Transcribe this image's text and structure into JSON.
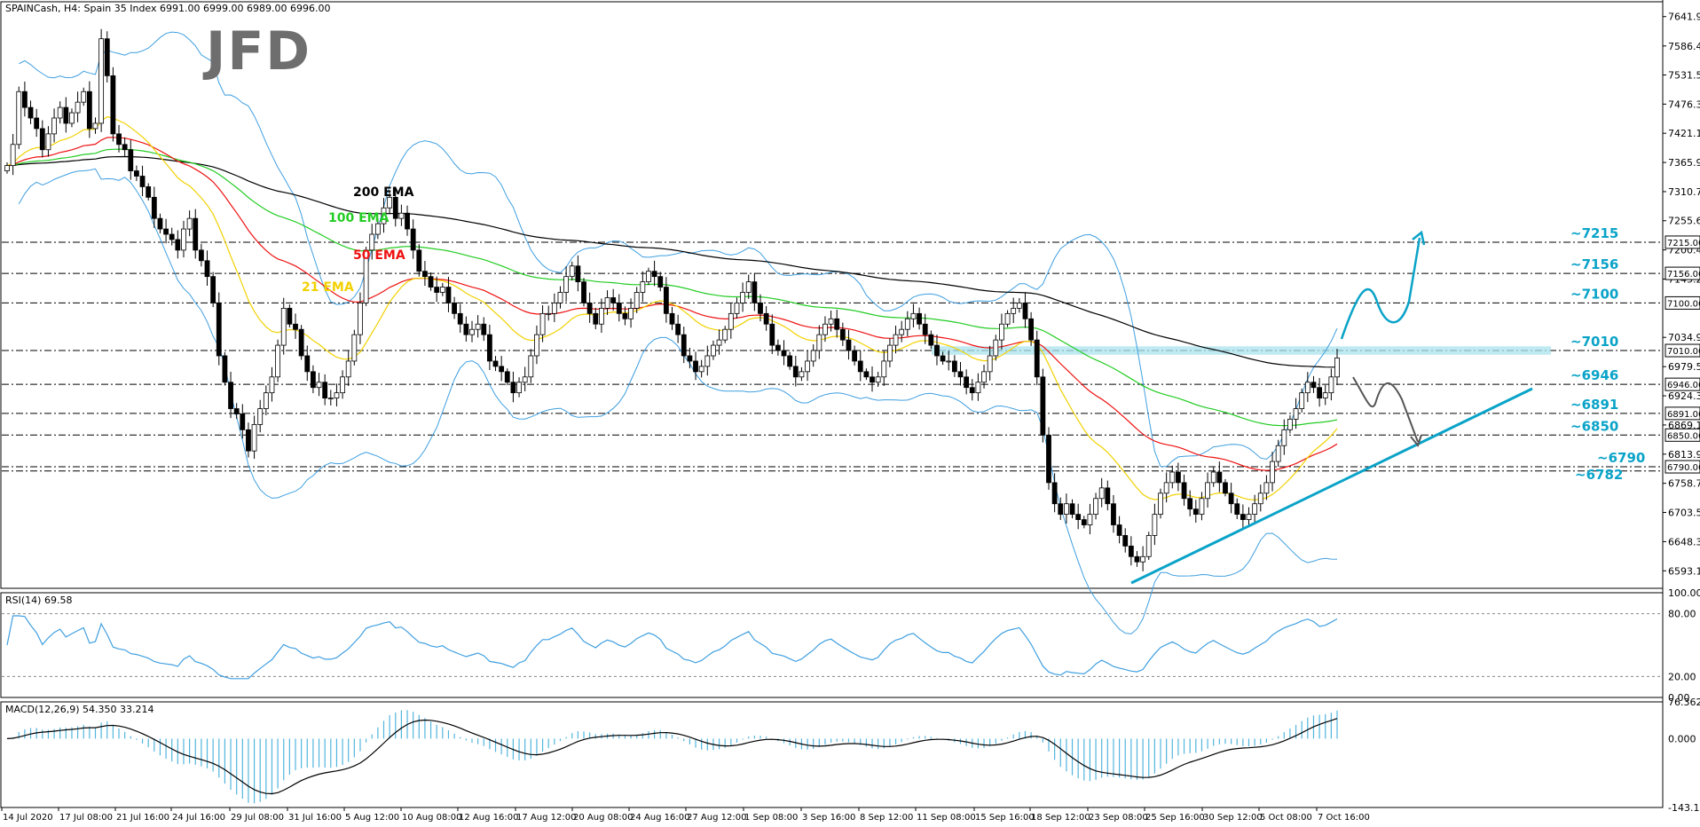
{
  "header": "SPAINCash, H4:  Spain 35 Index  6991.00 6999.00 6989.00 6996.00",
  "logo_text": "JFD",
  "colors": {
    "bull": "#ffffff",
    "bear": "#000000",
    "ema21": "#f2d100",
    "ema50": "#ee1111",
    "ema100": "#22cc22",
    "ema200": "#000000",
    "bands": "#3f9fe0",
    "accent": "#0aa3c8",
    "highlight": "#a9e3ee",
    "macd_hist": "#52b5dd"
  },
  "chart_data": [
    {
      "type": "candlestick",
      "ylim": [
        6560,
        7670
      ],
      "price_ticks": [
        "7641.90",
        "7586.40",
        "7531.50",
        "7476.30",
        "7421.15",
        "7365.90",
        "7310.70",
        "7255.65",
        "7200.40",
        "7145.20",
        "7034.90",
        "6979.50",
        "6924.30",
        "6869.10",
        "6813.90",
        "6758.70",
        "6703.55",
        "6648.30",
        "6593.10"
      ],
      "price_tags": [
        "7215.00",
        "7156.00",
        "7100.00",
        "7010.00",
        "6946.00",
        "6891.00",
        "6850.00",
        "6790.00"
      ],
      "levels": [
        {
          "value": 7215,
          "label": "~7215"
        },
        {
          "value": 7156,
          "label": "~7156"
        },
        {
          "value": 7100,
          "label": "~7100"
        },
        {
          "value": 7010,
          "label": "~7010"
        },
        {
          "value": 6946,
          "label": "~6946"
        },
        {
          "value": 6891,
          "label": "~6891"
        },
        {
          "value": 6850,
          "label": "~6850"
        },
        {
          "value": 6790,
          "label": "~6790"
        },
        {
          "value": 6782,
          "label": "~6782"
        }
      ],
      "ema_labels": [
        {
          "name": "200 EMA",
          "color": "#000000"
        },
        {
          "name": "100 EMA",
          "color": "#22cc22"
        },
        {
          "name": "50 EMA",
          "color": "#ee1111"
        },
        {
          "name": "21 EMA",
          "color": "#f2d100"
        }
      ],
      "closes": [
        7360,
        7400,
        7500,
        7470,
        7450,
        7430,
        7390,
        7420,
        7450,
        7470,
        7440,
        7460,
        7480,
        7500,
        7430,
        7440,
        7600,
        7530,
        7420,
        7400,
        7390,
        7350,
        7340,
        7320,
        7300,
        7260,
        7240,
        7230,
        7220,
        7200,
        7240,
        7260,
        7200,
        7180,
        7150,
        7100,
        7000,
        6950,
        6900,
        6890,
        6860,
        6820,
        6870,
        6900,
        6930,
        6960,
        7020,
        7090,
        7060,
        7050,
        7000,
        6970,
        6940,
        6950,
        6920,
        6920,
        6930,
        6960,
        6990,
        7040,
        7100,
        7200,
        7230,
        7250,
        7280,
        7300,
        7260,
        7270,
        7240,
        7200,
        7160,
        7150,
        7130,
        7120,
        7130,
        7100,
        7080,
        7060,
        7040,
        7050,
        7060,
        7040,
        6990,
        6980,
        6970,
        6950,
        6930,
        6950,
        6960,
        7000,
        7040,
        7080,
        7080,
        7100,
        7120,
        7150,
        7170,
        7140,
        7100,
        7080,
        7060,
        7090,
        7110,
        7100,
        7080,
        7070,
        7090,
        7120,
        7140,
        7160,
        7150,
        7130,
        7080,
        7060,
        7040,
        7000,
        6990,
        6970,
        6980,
        7000,
        7020,
        7030,
        7050,
        7080,
        7100,
        7120,
        7140,
        7100,
        7080,
        7060,
        7020,
        7010,
        7000,
        6980,
        6960,
        6970,
        6990,
        7010,
        7040,
        7060,
        7070,
        7050,
        7030,
        7010,
        6990,
        6970,
        6960,
        6950,
        6960,
        6990,
        7020,
        7040,
        7050,
        7070,
        7080,
        7060,
        7040,
        7020,
        7000,
        6990,
        6990,
        6970,
        6960,
        6940,
        6930,
        6950,
        6970,
        7000,
        7030,
        7060,
        7080,
        7090,
        7100,
        7070,
        7030,
        6960,
        6850,
        6760,
        6720,
        6700,
        6720,
        6700,
        6690,
        6680,
        6700,
        6730,
        6750,
        6720,
        6680,
        6660,
        6640,
        6620,
        6610,
        6620,
        6660,
        6700,
        6740,
        6760,
        6780,
        6760,
        6730,
        6710,
        6700,
        6730,
        6760,
        6780,
        6760,
        6740,
        6720,
        6700,
        6690,
        6700,
        6720,
        6740,
        6760,
        6800,
        6830,
        6860,
        6880,
        6900,
        6930,
        6950,
        6940,
        6920,
        6930,
        6960,
        6996
      ],
      "rsi_ticks": [
        "100.00",
        "80.00",
        "20.00",
        "0.00"
      ],
      "rsi_label": "RSI(14) 69.58",
      "macd_ticks": [
        "76.362",
        "0.000",
        "-143.168"
      ],
      "macd_label": "MACD(12,26,9) 54.350 33.214",
      "dates": [
        "14 Jul 2020",
        "17 Jul 08:00",
        "21 Jul 16:00",
        "24 Jul 16:00",
        "29 Jul 08:00",
        "31 Jul 16:00",
        "5 Aug 12:00",
        "10 Aug 08:00",
        "12 Aug 16:00",
        "17 Aug 12:00",
        "20 Aug 08:00",
        "24 Aug 16:00",
        "27 Aug 12:00",
        "1 Sep 08:00",
        "3 Sep 16:00",
        "8 Sep 12:00",
        "11 Sep 08:00",
        "15 Sep 16:00",
        "18 Sep 12:00",
        "23 Sep 08:00",
        "25 Sep 16:00",
        "30 Sep 12:00",
        "5 Oct 08:00",
        "7 Oct 16:00"
      ]
    }
  ]
}
